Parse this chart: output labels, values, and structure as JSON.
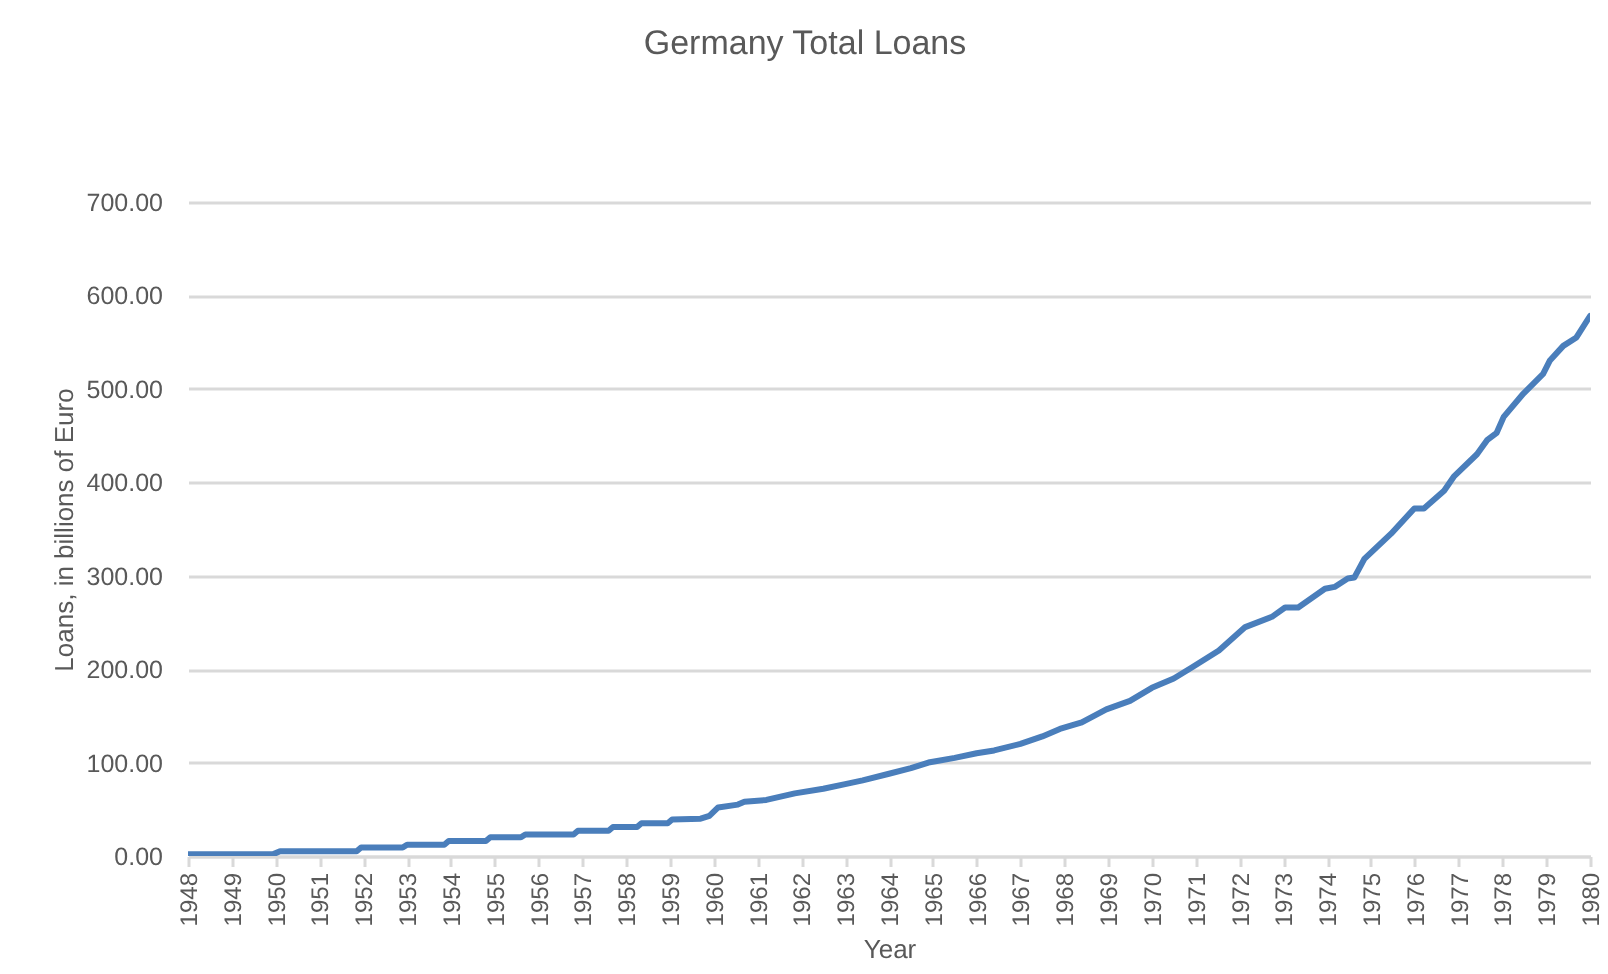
{
  "chart_data": {
    "type": "line",
    "title": "Germany Total Loans",
    "xlabel": "Year",
    "ylabel": "Loans, in billions of Euro",
    "x": [
      1948.0,
      1949.95,
      1950.1,
      1951.85,
      1951.95,
      1952.9,
      1953.0,
      1953.85,
      1953.95,
      1954.8,
      1954.9,
      1955.6,
      1955.7,
      1956.8,
      1956.9,
      1957.6,
      1957.7,
      1958.25,
      1958.35,
      1958.95,
      1959.05,
      1959.7,
      1959.9,
      1960.1,
      1960.55,
      1960.7,
      1961.2,
      1961.85,
      1962.5,
      1963.0,
      1963.4,
      1964.0,
      1964.5,
      1964.9,
      1965.5,
      1966.0,
      1966.4,
      1967.0,
      1967.5,
      1967.9,
      1968.4,
      1968.96,
      1969.5,
      1970.0,
      1970.5,
      1970.92,
      1971.53,
      1972.13,
      1972.74,
      1973.04,
      1973.34,
      1973.95,
      1974.17,
      1974.47,
      1974.62,
      1974.85,
      1975.46,
      1975.99,
      1976.21,
      1976.67,
      1976.89,
      1977.42,
      1977.65,
      1977.87,
      1978.03,
      1978.48,
      1978.93,
      1979.08,
      1979.39,
      1979.69,
      1980.0
    ],
    "series": [
      {
        "color": "#4a7ebb",
        "values": [
          2,
          2,
          5,
          5,
          9,
          9,
          12,
          12,
          16,
          16,
          20,
          20,
          23,
          23,
          27,
          27,
          31,
          31,
          35,
          35,
          39,
          40,
          43,
          52,
          55,
          58,
          60,
          67,
          72,
          77,
          81,
          88,
          94,
          100,
          105,
          110,
          113,
          120,
          128,
          136,
          143,
          157,
          166,
          180,
          190,
          202,
          220,
          245,
          256,
          266,
          266,
          286,
          288,
          297,
          298,
          318,
          345,
          372,
          372,
          391,
          406,
          430,
          445,
          453,
          470,
          495,
          516,
          530,
          546,
          555,
          578
        ]
      }
    ],
    "xlim": [
      1948,
      1980
    ],
    "xticks": [
      1948,
      1949,
      1950,
      1951,
      1952,
      1953,
      1954,
      1955,
      1956,
      1957,
      1958,
      1959,
      1960,
      1961,
      1962,
      1963,
      1964,
      1965,
      1966,
      1967,
      1968,
      1969,
      1970,
      1971,
      1972,
      1973,
      1974,
      1975,
      1976,
      1977,
      1978,
      1979,
      1980
    ],
    "ylim": [
      0,
      700
    ],
    "yticks": [
      {
        "value": 0,
        "label": "0.00"
      },
      {
        "value": 100,
        "label": "100.00"
      },
      {
        "value": 200,
        "label": "200.00"
      },
      {
        "value": 300,
        "label": "300.00"
      },
      {
        "value": 400,
        "label": "400.00"
      },
      {
        "value": 500,
        "label": "500.00"
      },
      {
        "value": 600,
        "label": "600.00"
      },
      {
        "value": 700,
        "label": "700.00"
      }
    ],
    "grid": "y"
  }
}
